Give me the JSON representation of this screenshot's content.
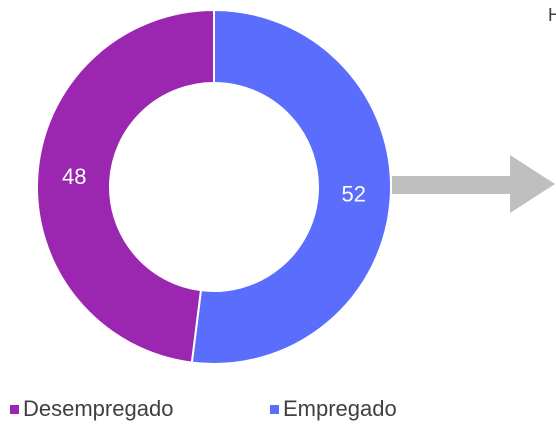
{
  "chart_data": {
    "type": "donut",
    "categories": [
      "Empregado",
      "Desempregado"
    ],
    "values": [
      52,
      48
    ],
    "colors": [
      "#5a6dfd",
      "#9b27b0"
    ],
    "legend": "bottom",
    "annotation": "H"
  }
}
